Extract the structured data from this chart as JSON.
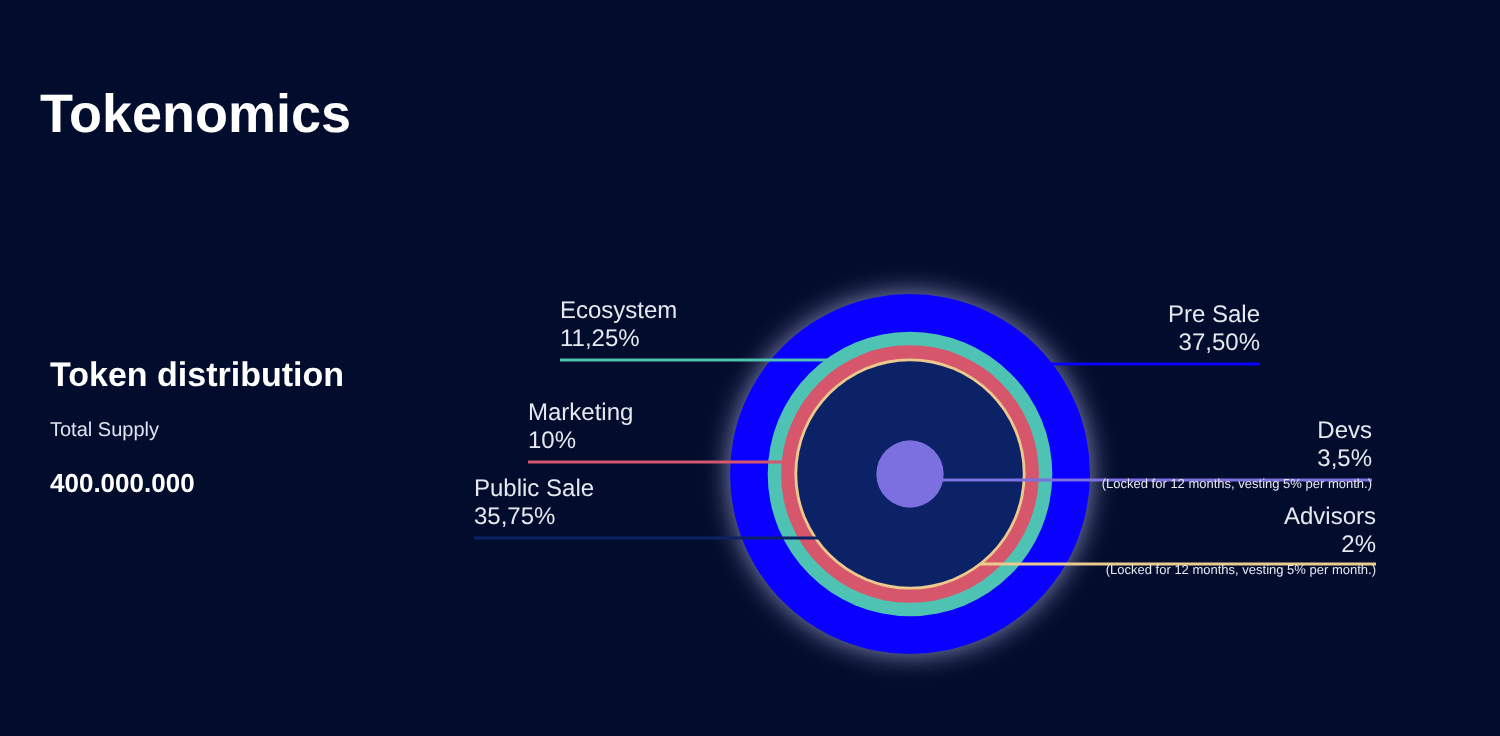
{
  "chart_data": {
    "type": "other",
    "title": "Tokenomics",
    "subtitle": "Token distribution",
    "categories": [
      "Pre Sale",
      "Ecosystem",
      "Marketing",
      "Advisors",
      "Public Sale",
      "Devs"
    ],
    "values": [
      37.5,
      11.25,
      10,
      2,
      35.75,
      3.5
    ],
    "value_labels": [
      "37,50%",
      "11,25%",
      "10%",
      "2%",
      "35,75%",
      "3,5%"
    ],
    "colors": [
      "#0a00ff",
      "#4ec3b3",
      "#d6566c",
      "#ecc98c",
      "#0b2266",
      "#7c6fe0"
    ],
    "annotations": [
      "Total Supply",
      "400.000.000",
      {
        "text": "(Locked for 12 months, vesting 5% per month.)",
        "x": "Advisors"
      },
      {
        "text": "(Locked for 12 months, vesting 5% per month.)",
        "x": "Devs"
      }
    ]
  }
}
